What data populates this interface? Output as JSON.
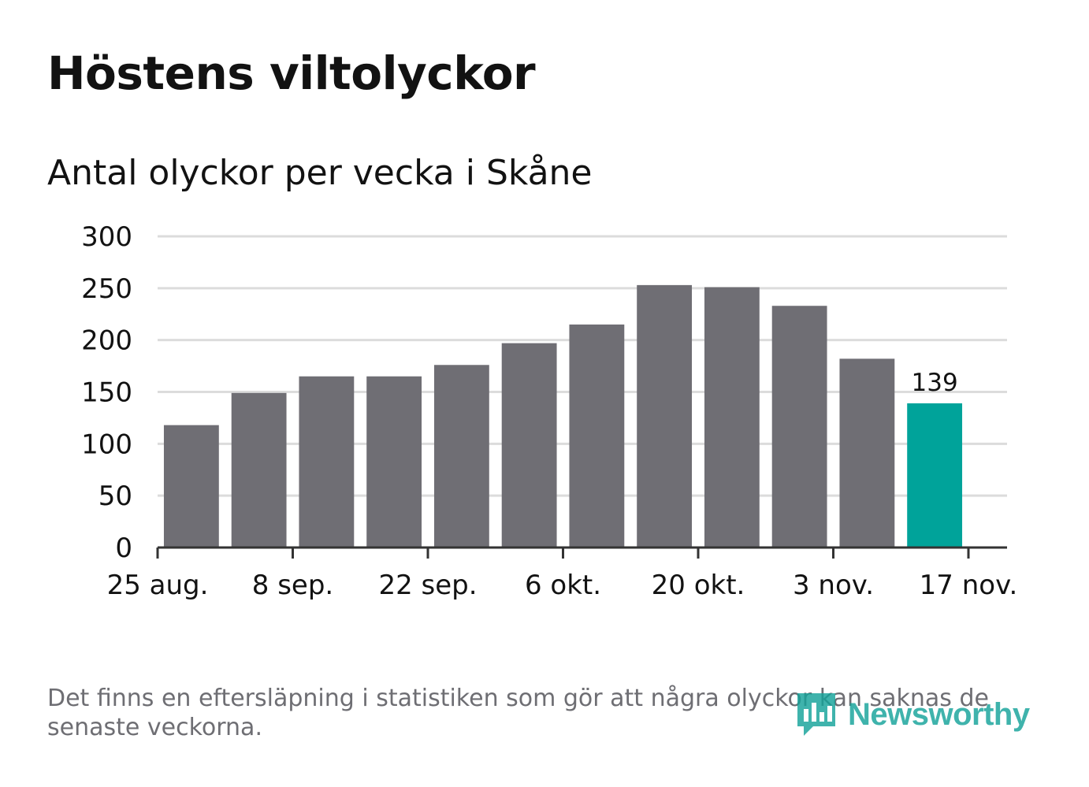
{
  "header": {
    "title": "Höstens viltolyckor",
    "subtitle": "Antal olyckor per vecka i Skåne"
  },
  "footer": {
    "note": "Det finns en eftersläpning i statistiken som gör att några olyckor kan saknas de senaste veckorna.",
    "logo_text": "Newsworthy"
  },
  "colors": {
    "bar": "#6f6e74",
    "highlight": "#00a39a",
    "grid": "#dcdcdc",
    "axis": "#333333",
    "text": "#121212",
    "muted": "#6e6e73"
  },
  "chart_data": {
    "type": "bar",
    "title": "Höstens viltolyckor",
    "subtitle": "Antal olyckor per vecka i Skåne",
    "x": [
      "2019-09-01",
      "2019-09-08",
      "2019-09-15",
      "2019-09-22",
      "2019-09-29",
      "2019-10-06",
      "2019-10-13",
      "2019-10-20",
      "2019-10-27",
      "2019-11-03",
      "2019-11-10",
      "2019-11-17"
    ],
    "values": [
      118,
      149,
      165,
      165,
      176,
      197,
      215,
      253,
      251,
      233,
      182,
      139
    ],
    "highlight_index": 11,
    "data_labels": [
      {
        "index": 11,
        "text": "139"
      }
    ],
    "xtick_labels": [
      "25 aug.",
      "8 sep.",
      "22 sep.",
      "6 okt.",
      "20 okt.",
      "3 nov.",
      "17 nov."
    ],
    "xtick_dates": [
      "2019-08-25",
      "2019-09-08",
      "2019-09-22",
      "2019-10-06",
      "2019-10-20",
      "2019-11-03",
      "2019-11-17"
    ],
    "xlim": [
      "2019-08-25",
      "2019-11-21"
    ],
    "yticks": [
      0,
      50,
      100,
      150,
      200,
      250,
      300
    ],
    "ylim": [
      0,
      300
    ],
    "grid": true,
    "xlabel": "",
    "ylabel": ""
  }
}
